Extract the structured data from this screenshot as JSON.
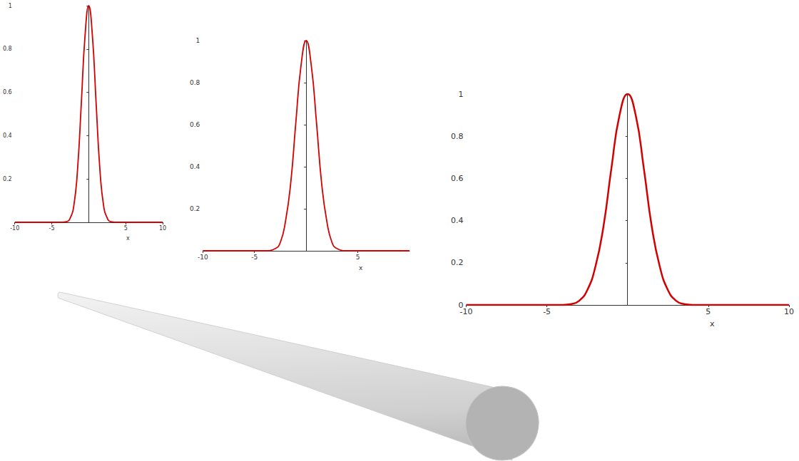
{
  "chart_data": [
    {
      "type": "line",
      "color": "#d40000",
      "grid": false,
      "x_label": "x",
      "x": [
        -10,
        -4,
        -3,
        -2.5,
        -2,
        -1.5,
        -1,
        -0.5,
        0,
        0.5,
        1,
        1.5,
        2,
        2.5,
        3,
        4,
        10
      ],
      "values": [
        0,
        0,
        0.003,
        0.02,
        0.08,
        0.25,
        0.55,
        0.86,
        1,
        0.86,
        0.55,
        0.25,
        0.08,
        0.02,
        0.003,
        0,
        0
      ],
      "xlim": [
        -10,
        10
      ],
      "ylim": [
        0,
        1
      ],
      "xticks": [
        -10,
        -5,
        5,
        10
      ],
      "yticks": [
        0.2,
        0.4,
        0.6,
        0.8,
        1
      ]
    },
    {
      "type": "line",
      "color": "#d40000",
      "grid": false,
      "x_label": "x",
      "x": [
        -10,
        -4,
        -3,
        -2.5,
        -2,
        -1.5,
        -1,
        -0.5,
        0,
        0.5,
        1,
        1.5,
        2,
        2.5,
        3,
        4,
        10
      ],
      "values": [
        0,
        0,
        0.01,
        0.04,
        0.14,
        0.32,
        0.61,
        0.88,
        1,
        0.88,
        0.61,
        0.32,
        0.14,
        0.04,
        0.01,
        0,
        0
      ],
      "xlim": [
        -10,
        10
      ],
      "ylim": [
        0,
        1
      ],
      "xticks": [
        -10,
        -5,
        5
      ],
      "yticks": [
        0.2,
        0.4,
        0.6,
        0.8,
        1
      ]
    },
    {
      "type": "line",
      "color": "#d40000",
      "grid": false,
      "x_label": "x",
      "x": [
        -10,
        -4,
        -3.5,
        -3,
        -2.5,
        -2,
        -1.5,
        -1,
        -0.5,
        0,
        0.5,
        1,
        1.5,
        2,
        2.5,
        3,
        3.5,
        4,
        10
      ],
      "values": [
        0,
        0,
        0.004,
        0.02,
        0.07,
        0.18,
        0.37,
        0.65,
        0.9,
        1,
        0.9,
        0.65,
        0.37,
        0.18,
        0.07,
        0.02,
        0.004,
        0,
        0
      ],
      "xlim": [
        -10,
        10
      ],
      "ylim": [
        0,
        1
      ],
      "xticks": [
        -10,
        -5,
        5,
        10
      ],
      "yticks": [
        0,
        0.2,
        0.4,
        0.6,
        0.8,
        1
      ]
    }
  ]
}
